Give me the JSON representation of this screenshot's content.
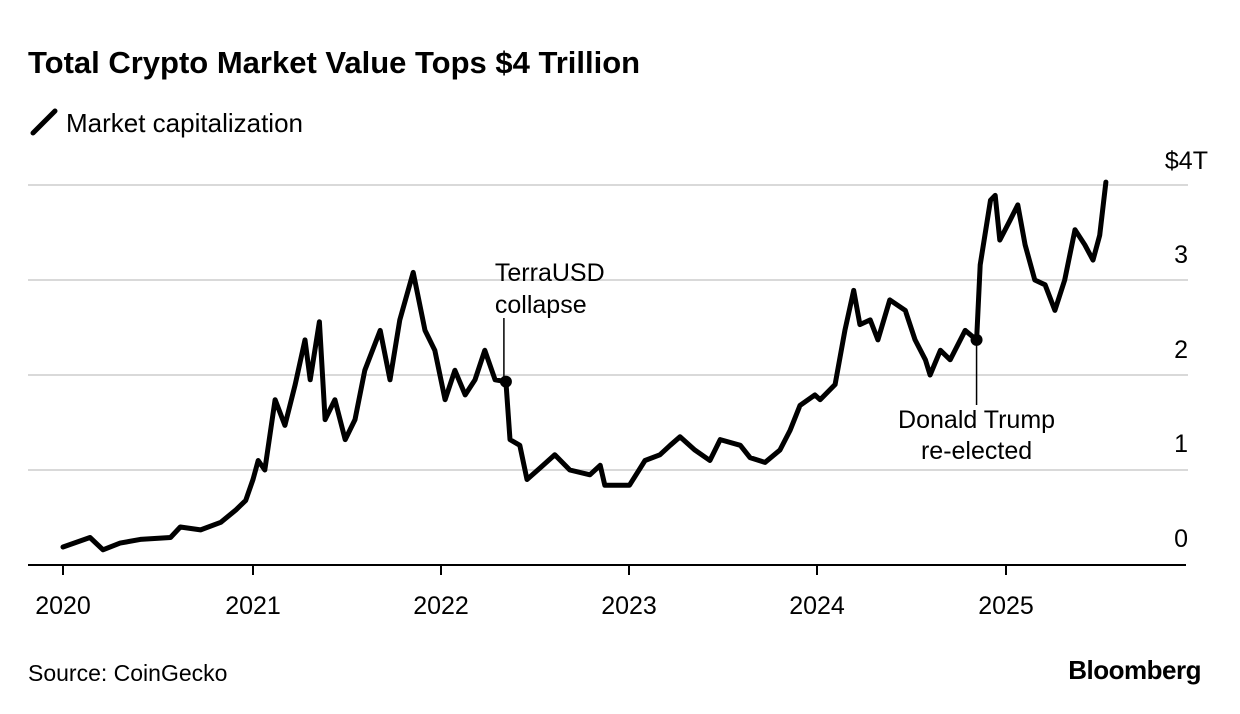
{
  "chart_data": {
    "type": "line",
    "title": "Total Crypto Market Value Tops $4 Trillion",
    "source": "Source: CoinGecko",
    "brand": "Bloomberg",
    "xlabel": "",
    "ylabel": "",
    "x_ticks": [
      "2020",
      "2021",
      "2022",
      "2023",
      "2024",
      "2025"
    ],
    "y_ticks": [
      "0",
      "1",
      "2",
      "3",
      "$4T"
    ],
    "ylim": [
      0,
      4
    ],
    "y_unit": "trillion USD",
    "grid": true,
    "legend_position": "top-left",
    "line_color": "#000000",
    "grid_color": "#d9d9d9",
    "series": [
      {
        "name": "Market capitalization",
        "x": [
          "2020-01-01",
          "2020-02-22",
          "2020-03-18",
          "2020-04-20",
          "2020-05-29",
          "2020-07-26",
          "2020-08-14",
          "2020-09-22",
          "2020-10-31",
          "2020-11-29",
          "2020-12-18",
          "2021-01-01",
          "2021-01-11",
          "2021-01-24",
          "2021-02-13",
          "2021-03-04",
          "2021-03-24",
          "2021-04-12",
          "2021-04-22",
          "2021-05-10",
          "2021-05-21",
          "2021-06-09",
          "2021-06-29",
          "2021-07-18",
          "2021-08-06",
          "2021-09-05",
          "2021-09-24",
          "2021-10-13",
          "2021-11-08",
          "2021-12-01",
          "2021-12-20",
          "2022-01-09",
          "2022-01-28",
          "2022-02-17",
          "2022-03-08",
          "2022-03-27",
          "2022-04-16",
          "2022-05-07",
          "2022-05-15",
          "2022-06-03",
          "2022-06-17",
          "2022-07-12",
          "2022-08-10",
          "2022-09-08",
          "2022-10-17",
          "2022-11-06",
          "2022-11-15",
          "2022-12-15",
          "2023-01-02",
          "2023-02-01",
          "2023-03-02",
          "2023-03-22",
          "2023-04-10",
          "2023-05-09",
          "2023-06-07",
          "2023-06-27",
          "2023-08-05",
          "2023-08-24",
          "2023-09-22",
          "2023-10-21",
          "2023-11-10",
          "2023-11-29",
          "2023-12-28",
          "2024-01-07",
          "2024-02-05",
          "2024-02-24",
          "2024-03-12",
          "2024-03-24",
          "2024-04-13",
          "2024-04-28",
          "2024-05-21",
          "2024-06-20",
          "2024-07-09",
          "2024-07-29",
          "2024-08-07",
          "2024-08-27",
          "2024-09-15",
          "2024-10-14",
          "2024-11-05",
          "2024-11-12",
          "2024-12-02",
          "2024-12-11",
          "2024-12-20",
          "2025-01-09",
          "2025-01-24",
          "2025-02-07",
          "2025-02-26",
          "2025-03-18",
          "2025-04-06",
          "2025-04-25",
          "2025-05-15",
          "2025-06-03",
          "2025-06-19",
          "2025-07-02",
          "2025-07-14"
        ],
        "values": [
          0.19,
          0.29,
          0.16,
          0.23,
          0.27,
          0.29,
          0.4,
          0.37,
          0.45,
          0.58,
          0.68,
          0.9,
          1.1,
          1.0,
          1.74,
          1.47,
          1.9,
          2.37,
          1.95,
          2.56,
          1.53,
          1.74,
          1.32,
          1.53,
          2.05,
          2.47,
          1.95,
          2.58,
          3.08,
          2.47,
          2.26,
          1.74,
          2.05,
          1.79,
          1.95,
          2.26,
          1.95,
          1.93,
          1.32,
          1.26,
          0.9,
          1.02,
          1.16,
          1.0,
          0.95,
          1.05,
          0.84,
          0.84,
          0.84,
          1.1,
          1.16,
          1.26,
          1.35,
          1.21,
          1.1,
          1.32,
          1.26,
          1.13,
          1.08,
          1.21,
          1.42,
          1.68,
          1.79,
          1.74,
          1.9,
          2.47,
          2.89,
          2.53,
          2.58,
          2.37,
          2.79,
          2.68,
          2.37,
          2.16,
          2.0,
          2.26,
          2.16,
          2.47,
          2.37,
          3.16,
          3.84,
          3.89,
          3.42,
          3.63,
          3.79,
          3.37,
          3.0,
          2.95,
          2.68,
          3.0,
          3.53,
          3.37,
          3.21,
          3.47,
          4.03
        ]
      }
    ],
    "annotations": [
      {
        "date": "2022-05-07",
        "value": 1.93,
        "lines": [
          "TerraUSD",
          "collapse"
        ]
      },
      {
        "date": "2024-11-05",
        "value": 2.37,
        "lines": [
          "Donald Trump",
          "re-elected"
        ]
      }
    ]
  }
}
